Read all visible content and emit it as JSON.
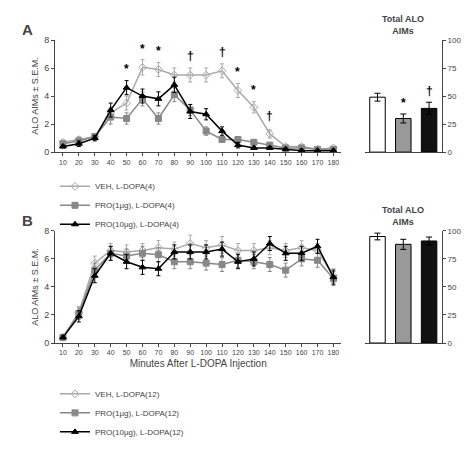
{
  "chart_data": [
    {
      "type": "line",
      "title": "A",
      "x": [
        10,
        20,
        30,
        40,
        50,
        60,
        70,
        80,
        90,
        100,
        110,
        120,
        130,
        140,
        150,
        160,
        170,
        180
      ],
      "xlim": [
        5,
        185
      ],
      "xticks": [
        10,
        20,
        30,
        40,
        50,
        60,
        70,
        80,
        90,
        100,
        110,
        120,
        130,
        140,
        150,
        160,
        170,
        180
      ],
      "ylim": [
        0,
        8
      ],
      "yticks": [
        0,
        2,
        4,
        6,
        8
      ],
      "ylabel": "ALO AIMs ± S.E.M.",
      "grid": false,
      "legend": "bottom left",
      "series": [
        {
          "name": "VEH, L-DOPA(4)",
          "color": "#aaaaaa",
          "marker": "diamond-open",
          "values": [
            0.7,
            0.9,
            1.1,
            2.8,
            3.5,
            6.05,
            5.9,
            5.5,
            5.5,
            5.5,
            5.8,
            4.4,
            3.2,
            1.3,
            0.4,
            0.4,
            0.2,
            0.3
          ],
          "errors": [
            0.15,
            0.2,
            0.2,
            0.4,
            0.5,
            0.55,
            0.5,
            0.5,
            0.5,
            0.5,
            0.5,
            0.5,
            0.4,
            0.3,
            0.1,
            0.1,
            0.1,
            0.1
          ]
        },
        {
          "name": "PRO(1µg), L-DOPA(4)",
          "color": "#888888",
          "marker": "square",
          "values": [
            0.6,
            0.8,
            1.1,
            2.5,
            2.4,
            3.8,
            2.4,
            4.1,
            3.0,
            1.5,
            0.9,
            0.9,
            0.7,
            0.5,
            0.3,
            0.3,
            0.2,
            0.2
          ],
          "errors": [
            0.12,
            0.2,
            0.2,
            0.5,
            0.4,
            0.5,
            0.4,
            0.5,
            0.4,
            0.3,
            0.2,
            0.2,
            0.2,
            0.1,
            0.1,
            0.1,
            0.1,
            0.1
          ]
        },
        {
          "name": "PRO(10µg), L-DOPA(4)",
          "color": "#000000",
          "marker": "triangle-up",
          "values": [
            0.4,
            0.6,
            1.0,
            3.0,
            4.6,
            4.0,
            3.8,
            4.8,
            2.9,
            2.7,
            1.5,
            0.5,
            0.3,
            0.3,
            0.2,
            0.1,
            0.1,
            0.1
          ],
          "errors": [
            0.1,
            0.2,
            0.2,
            0.5,
            0.5,
            0.5,
            0.5,
            0.55,
            0.5,
            0.4,
            0.3,
            0.2,
            0.1,
            0.1,
            0.1,
            0.1,
            0.1,
            0.1
          ]
        }
      ],
      "annotations": [
        {
          "x": 50,
          "y": 5.3,
          "text": "*"
        },
        {
          "x": 60,
          "y": 6.75,
          "text": "*"
        },
        {
          "x": 70,
          "y": 6.6,
          "text": "*"
        },
        {
          "x": 90,
          "y": 6.2,
          "text": "†"
        },
        {
          "x": 110,
          "y": 6.5,
          "text": "†"
        },
        {
          "x": 120,
          "y": 5.1,
          "text": "*"
        },
        {
          "x": 130,
          "y": 3.8,
          "text": "*"
        },
        {
          "x": 140,
          "y": 1.9,
          "text": "†"
        }
      ]
    },
    {
      "type": "bar",
      "title": "Total ALO\nAIMs",
      "categories": [
        null,
        null,
        null
      ],
      "values": [
        49,
        30,
        39
      ],
      "errors": [
        3.5,
        4.0,
        5.5
      ],
      "colors": [
        "#ffffff",
        "#999999",
        "#111111"
      ],
      "ylim": [
        0,
        100
      ],
      "yticks": [
        0,
        25,
        50,
        75,
        100
      ],
      "tick_labels": "y",
      "grid": false,
      "annotations": [
        {
          "x": 1,
          "y": 36.0,
          "text": "*"
        },
        {
          "x": 2,
          "y": 46.5,
          "text": "†"
        }
      ]
    },
    {
      "type": "line",
      "title": "B",
      "x": [
        10,
        20,
        30,
        40,
        50,
        60,
        70,
        80,
        90,
        100,
        110,
        120,
        130,
        140,
        150,
        160,
        170,
        180
      ],
      "xlim": [
        5,
        185
      ],
      "xticks": [
        10,
        20,
        30,
        40,
        50,
        60,
        70,
        80,
        90,
        100,
        110,
        120,
        130,
        140,
        150,
        160,
        170,
        180
      ],
      "ylim": [
        0,
        8
      ],
      "yticks": [
        0,
        2,
        4,
        6,
        8
      ],
      "xlabel": "Minutes After L-DOPA Injection",
      "ylabel": "ALO AIMs ± S.E.M.",
      "grid": false,
      "legend": "bottom left",
      "series": [
        {
          "name": "VEH, L-DOPA(12)",
          "color": "#aaaaaa",
          "marker": "diamond-open",
          "values": [
            0.4,
            2.2,
            5.7,
            6.6,
            6.5,
            6.6,
            6.8,
            6.7,
            7.1,
            6.8,
            7.0,
            6.6,
            6.6,
            6.8,
            6.6,
            6.8,
            6.6,
            4.8
          ],
          "errors": [
            0.1,
            0.4,
            0.5,
            0.5,
            0.5,
            0.5,
            0.5,
            0.5,
            0.6,
            0.5,
            0.6,
            0.5,
            0.5,
            0.5,
            0.5,
            0.5,
            0.5,
            0.5
          ]
        },
        {
          "name": "PRO(1µg), L-DOPA(12)",
          "color": "#888888",
          "marker": "square",
          "values": [
            0.4,
            2.1,
            5.2,
            6.4,
            6.2,
            6.4,
            6.3,
            5.8,
            5.8,
            5.7,
            5.6,
            5.9,
            5.8,
            5.6,
            5.2,
            6.0,
            5.9,
            4.6
          ],
          "errors": [
            0.1,
            0.4,
            0.5,
            0.5,
            0.5,
            0.5,
            0.5,
            0.5,
            0.5,
            0.5,
            0.5,
            0.5,
            0.5,
            0.5,
            0.5,
            0.5,
            0.5,
            0.5
          ]
        },
        {
          "name": "PRO(10µg), L-DOPA(12)",
          "color": "#000000",
          "marker": "triangle-up",
          "values": [
            0.4,
            1.9,
            4.8,
            6.4,
            5.8,
            5.4,
            5.3,
            6.5,
            6.5,
            6.5,
            6.7,
            5.8,
            6.0,
            7.1,
            6.4,
            6.4,
            6.9,
            4.7
          ],
          "errors": [
            0.1,
            0.4,
            0.5,
            0.5,
            0.5,
            0.5,
            0.5,
            0.5,
            0.5,
            0.5,
            0.5,
            0.5,
            0.5,
            0.5,
            0.5,
            0.5,
            0.5,
            0.5
          ]
        }
      ]
    },
    {
      "type": "bar",
      "title": "Total ALO\nAIMs",
      "categories": [
        null,
        null,
        null
      ],
      "values": [
        95,
        88,
        91
      ],
      "errors": [
        3.0,
        4.5,
        3.5
      ],
      "colors": [
        "#ffffff",
        "#999999",
        "#111111"
      ],
      "ylim": [
        0,
        100
      ],
      "yticks": [
        0,
        25,
        50,
        75,
        100
      ],
      "tick_labels": "y",
      "grid": false
    }
  ]
}
